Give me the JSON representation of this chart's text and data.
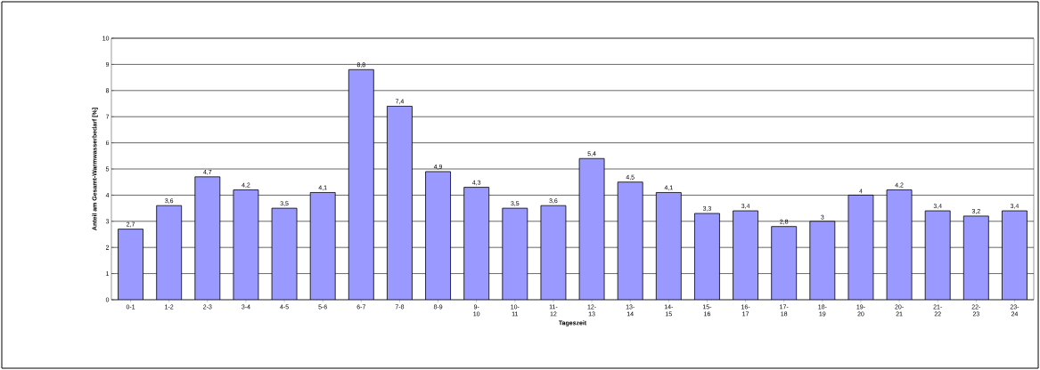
{
  "chart_data": {
    "type": "bar",
    "xlabel": "Tageszeit",
    "ylabel": "Anteil am Gesamt-Warmwasserbedarf [%]",
    "categories": [
      "0-1",
      "1-2",
      "2-3",
      "3-4",
      "4-5",
      "5-6",
      "6-7",
      "7-8",
      "8-9",
      "9-10",
      "10-11",
      "11-12",
      "12-13",
      "13-14",
      "14-15",
      "15-16",
      "16-17",
      "17-18",
      "18-19",
      "19-20",
      "20-21",
      "21-22",
      "22-23",
      "23-24"
    ],
    "values": [
      2.7,
      3.6,
      4.7,
      4.2,
      3.5,
      4.1,
      8.8,
      7.4,
      4.9,
      4.3,
      3.5,
      3.6,
      5.4,
      4.5,
      4.1,
      3.3,
      3.4,
      2.8,
      3,
      4,
      4.2,
      3.4,
      3.2,
      3.4
    ],
    "value_labels": [
      "2,7",
      "3,6",
      "4,7",
      "4,2",
      "3,5",
      "4,1",
      "8,8",
      "7,4",
      "4,9",
      "4,3",
      "3,5",
      "3,6",
      "5,4",
      "4,5",
      "4,1",
      "3,3",
      "3,4",
      "2,8",
      "3",
      "4",
      "4,2",
      "3,4",
      "3,2",
      "3,4"
    ],
    "color": "#9999ff",
    "ylim": [
      0,
      10
    ],
    "yticks": [
      0,
      1,
      2,
      3,
      4,
      5,
      6,
      7,
      8,
      9,
      10
    ],
    "grid": "y"
  }
}
